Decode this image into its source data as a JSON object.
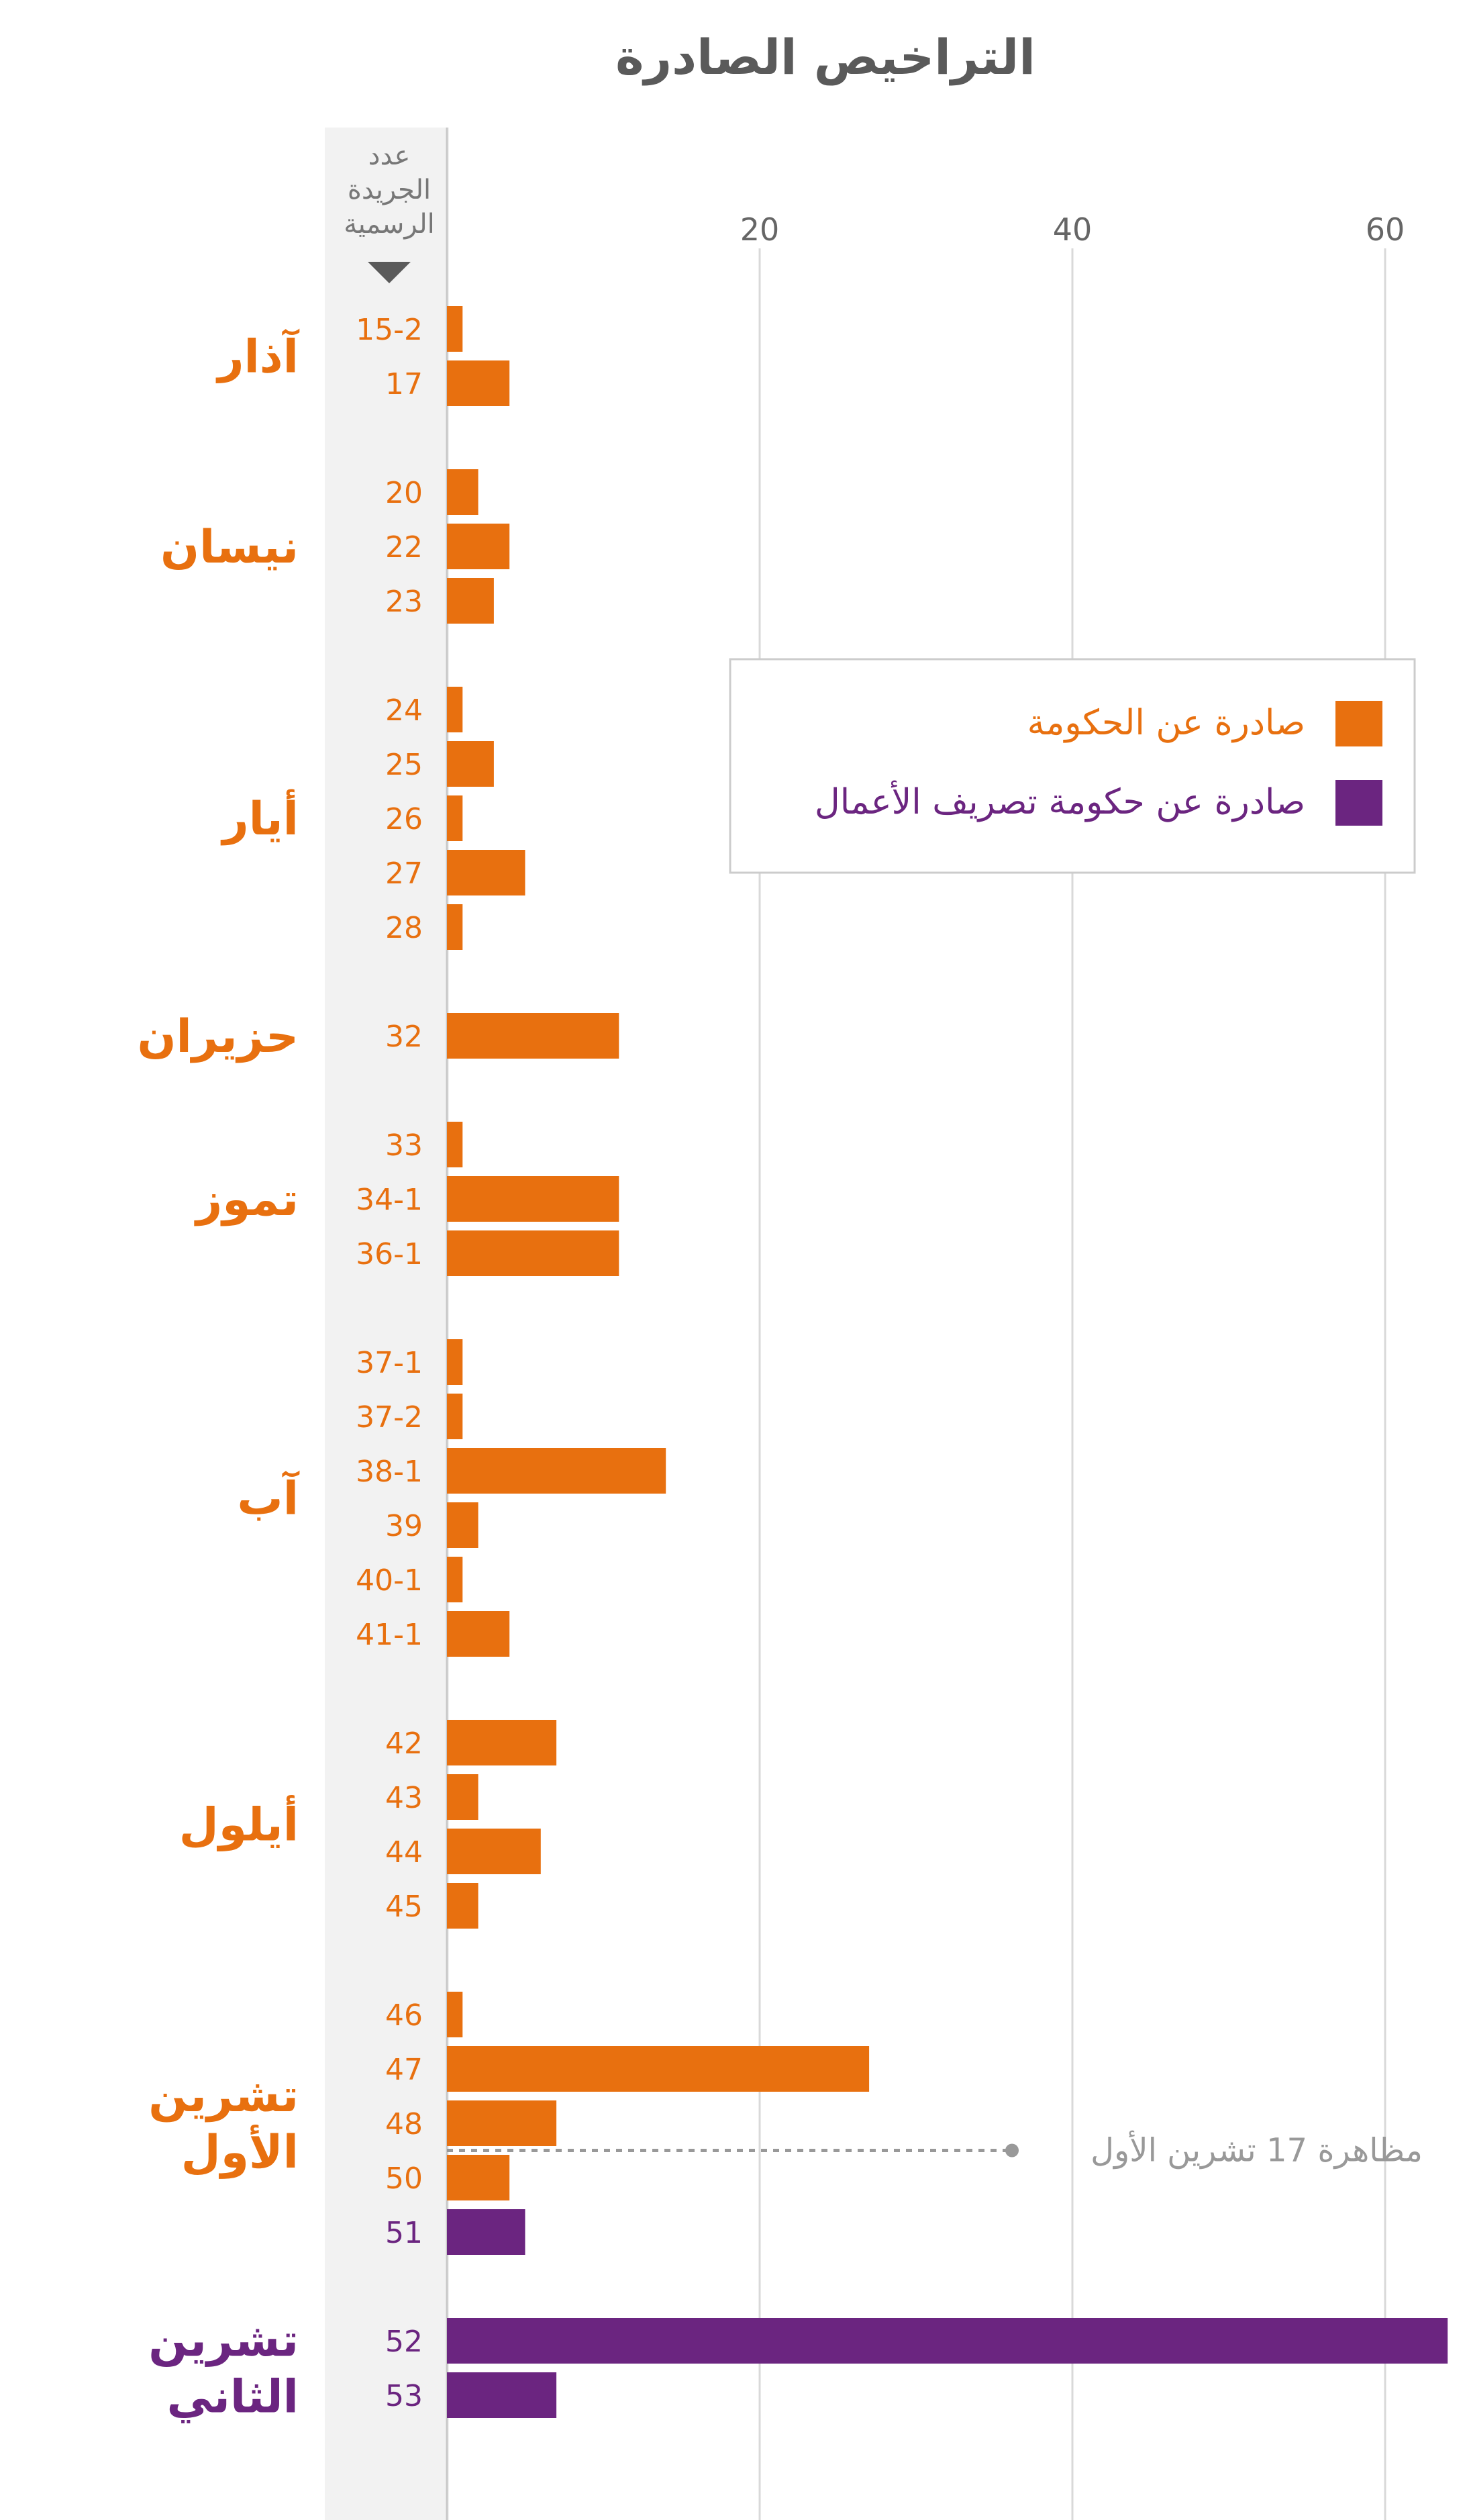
{
  "chart_data": {
    "type": "bar",
    "orientation": "horizontal",
    "title": "التراخيص الصادرة",
    "axis_header": [
      "عدد",
      "الجريدة",
      "الرسمية"
    ],
    "xlim": [
      0,
      64
    ],
    "x_ticks": [
      "20",
      "40",
      "60"
    ],
    "x_tick_values": [
      20,
      40,
      60
    ],
    "grid": true,
    "legend_position": "top-right",
    "series": [
      {
        "name": "صادرة عن الحكومة",
        "color": "#E8700F"
      },
      {
        "name": "صادرة عن حكومة تصريف الأعمال",
        "color": "#6B2580"
      }
    ],
    "colors": {
      "government": "#E8700F",
      "caretaker": "#6B2580",
      "annotation": "#999999"
    },
    "annotation": {
      "text": "مظاهرة 17 تشرين الأول"
    },
    "groups": [
      {
        "month": [
          "آذار"
        ],
        "color": "#E8700F",
        "items": [
          {
            "issue": "15-2",
            "value": 1,
            "series": "government"
          },
          {
            "issue": "17",
            "value": 4,
            "series": "government"
          }
        ]
      },
      {
        "month": [
          "نيسان"
        ],
        "color": "#E8700F",
        "items": [
          {
            "issue": "20",
            "value": 2,
            "series": "government"
          },
          {
            "issue": "22",
            "value": 4,
            "series": "government"
          },
          {
            "issue": "23",
            "value": 3,
            "series": "government"
          }
        ]
      },
      {
        "month": [
          "أيار"
        ],
        "color": "#E8700F",
        "items": [
          {
            "issue": "24",
            "value": 1,
            "series": "government"
          },
          {
            "issue": "25",
            "value": 3,
            "series": "government"
          },
          {
            "issue": "26",
            "value": 1,
            "series": "government"
          },
          {
            "issue": "27",
            "value": 5,
            "series": "government"
          },
          {
            "issue": "28",
            "value": 1,
            "series": "government"
          }
        ]
      },
      {
        "month": [
          "حزيران"
        ],
        "color": "#E8700F",
        "items": [
          {
            "issue": "32",
            "value": 11,
            "series": "government"
          }
        ]
      },
      {
        "month": [
          "تموز"
        ],
        "color": "#E8700F",
        "items": [
          {
            "issue": "33",
            "value": 1,
            "series": "government"
          },
          {
            "issue": "34-1",
            "value": 11,
            "series": "government"
          },
          {
            "issue": "36-1",
            "value": 11,
            "series": "government"
          }
        ]
      },
      {
        "month": [
          "آب"
        ],
        "color": "#E8700F",
        "items": [
          {
            "issue": "37-1",
            "value": 1,
            "series": "government"
          },
          {
            "issue": "37-2",
            "value": 1,
            "series": "government"
          },
          {
            "issue": "38-1",
            "value": 14,
            "series": "government"
          },
          {
            "issue": "39",
            "value": 2,
            "series": "government"
          },
          {
            "issue": "40-1",
            "value": 1,
            "series": "government"
          },
          {
            "issue": "41-1",
            "value": 4,
            "series": "government"
          }
        ]
      },
      {
        "month": [
          "أيلول"
        ],
        "color": "#E8700F",
        "items": [
          {
            "issue": "42",
            "value": 7,
            "series": "government"
          },
          {
            "issue": "43",
            "value": 2,
            "series": "government"
          },
          {
            "issue": "44",
            "value": 6,
            "series": "government"
          },
          {
            "issue": "45",
            "value": 2,
            "series": "government"
          }
        ]
      },
      {
        "month": [
          "تشرين",
          "الأول"
        ],
        "color": "#E8700F",
        "items": [
          {
            "issue": "46",
            "value": 1,
            "series": "government"
          },
          {
            "issue": "47",
            "value": 27,
            "series": "government"
          },
          {
            "issue": "48",
            "value": 7,
            "series": "government"
          },
          {
            "issue": "50",
            "value": 4,
            "series": "government"
          },
          {
            "issue": "51",
            "value": 5,
            "series": "caretaker"
          }
        ]
      },
      {
        "month": [
          "تشرين",
          "الثاني"
        ],
        "color": "#6B2580",
        "items": [
          {
            "issue": "52",
            "value": 64,
            "series": "caretaker"
          },
          {
            "issue": "53",
            "value": 7,
            "series": "caretaker"
          }
        ]
      }
    ]
  }
}
